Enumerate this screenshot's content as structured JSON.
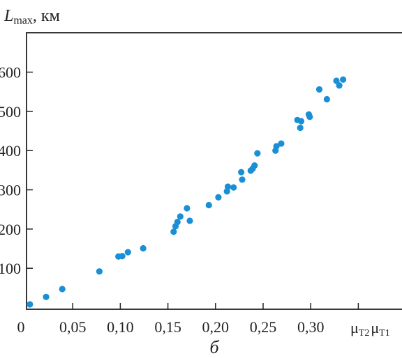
{
  "chart_data": {
    "type": "scatter",
    "title": "",
    "ylabel": {
      "main": "L",
      "sub": "max",
      "unit": ", км"
    },
    "xlabel": {
      "mu1": "μ",
      "sub1": "T2",
      "mu2": "μ",
      "sub2": "T1"
    },
    "caption": "б",
    "xlim": [
      0,
      0.42
    ],
    "ylim": [
      0,
      660
    ],
    "xticks": [
      {
        "value": 0,
        "label": "0"
      },
      {
        "value": 0.05,
        "label": "0,05"
      },
      {
        "value": 0.1,
        "label": "0,10"
      },
      {
        "value": 0.15,
        "label": "0,15"
      },
      {
        "value": 0.2,
        "label": "0,20"
      },
      {
        "value": 0.25,
        "label": "0,25"
      },
      {
        "value": 0.3,
        "label": "0,30"
      },
      {
        "value": 0.35,
        "label": ""
      }
    ],
    "yticks": [
      {
        "value": 100,
        "label": "100"
      },
      {
        "value": 200,
        "label": "200"
      },
      {
        "value": 300,
        "label": "300"
      },
      {
        "value": 400,
        "label": "400"
      },
      {
        "value": 500,
        "label": "500"
      },
      {
        "value": 600,
        "label": "600"
      }
    ],
    "marker_color": "#1a8fd6",
    "points": [
      [
        0.005,
        8
      ],
      [
        0.022,
        27
      ],
      [
        0.039,
        47
      ],
      [
        0.078,
        92
      ],
      [
        0.098,
        130
      ],
      [
        0.102,
        131
      ],
      [
        0.108,
        141
      ],
      [
        0.124,
        151
      ],
      [
        0.156,
        193
      ],
      [
        0.158,
        207
      ],
      [
        0.16,
        218
      ],
      [
        0.163,
        232
      ],
      [
        0.17,
        253
      ],
      [
        0.173,
        221
      ],
      [
        0.193,
        261
      ],
      [
        0.203,
        281
      ],
      [
        0.212,
        296
      ],
      [
        0.213,
        308
      ],
      [
        0.219,
        306
      ],
      [
        0.227,
        345
      ],
      [
        0.228,
        326
      ],
      [
        0.237,
        349
      ],
      [
        0.239,
        354
      ],
      [
        0.241,
        362
      ],
      [
        0.244,
        393
      ],
      [
        0.263,
        400
      ],
      [
        0.264,
        411
      ],
      [
        0.269,
        418
      ],
      [
        0.286,
        478
      ],
      [
        0.289,
        458
      ],
      [
        0.29,
        475
      ],
      [
        0.298,
        492
      ],
      [
        0.299,
        486
      ],
      [
        0.309,
        556
      ],
      [
        0.317,
        531
      ],
      [
        0.327,
        578
      ],
      [
        0.33,
        566
      ],
      [
        0.334,
        581
      ]
    ]
  }
}
